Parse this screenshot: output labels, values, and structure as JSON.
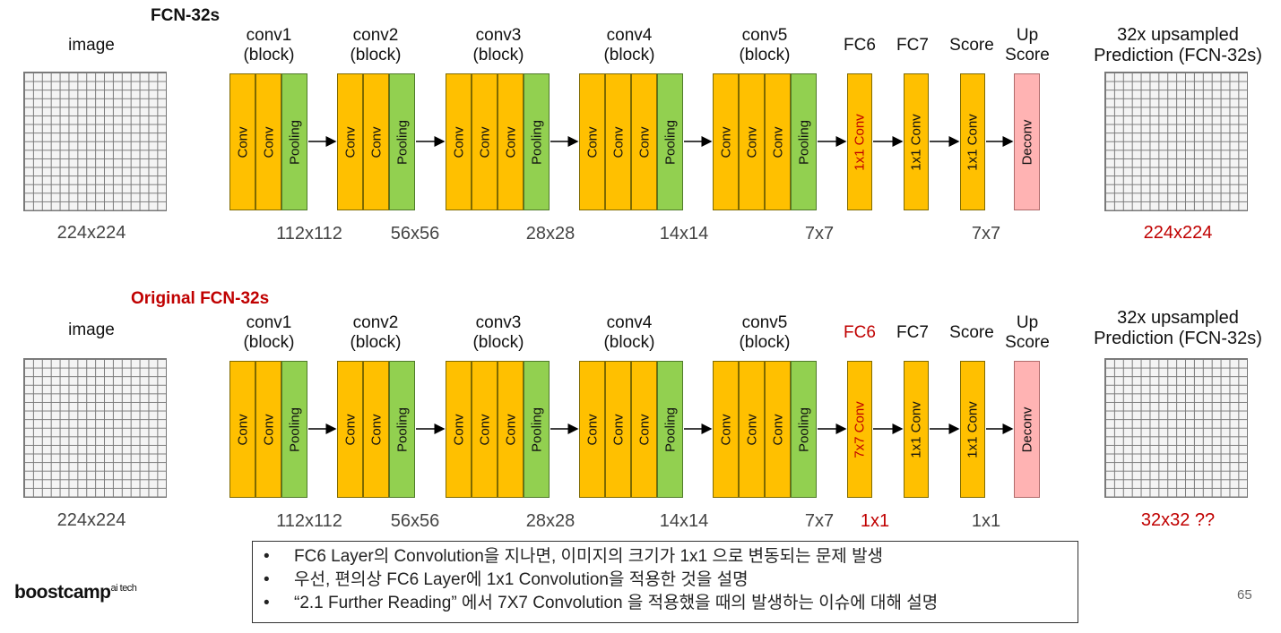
{
  "colors": {
    "conv": "#ffc000",
    "pooling": "#92d050",
    "deconv": "#ffb3b3",
    "red": "#c00000",
    "gray": "#444444"
  },
  "rows": [
    {
      "title": "FCN-32s",
      "input_label": "image",
      "input_size": "224x224",
      "blocks": [
        {
          "label": "conv1\n(block)",
          "layers": [
            "Conv",
            "Conv",
            "Pooling"
          ]
        },
        {
          "label": "conv2\n(block)",
          "layers": [
            "Conv",
            "Conv",
            "Pooling"
          ]
        },
        {
          "label": "conv3\n(block)",
          "layers": [
            "Conv",
            "Conv",
            "Conv",
            "Pooling"
          ]
        },
        {
          "label": "conv4\n(block)",
          "layers": [
            "Conv",
            "Conv",
            "Conv",
            "Pooling"
          ]
        },
        {
          "label": "conv5\n(block)",
          "layers": [
            "Conv",
            "Conv",
            "Conv",
            "Pooling"
          ]
        },
        {
          "label": "FC6",
          "layers": [
            "1x1 Conv"
          ]
        },
        {
          "label": "FC7",
          "layers": [
            "1x1 Conv"
          ]
        },
        {
          "label": "Score",
          "layers": [
            "1x1 Conv"
          ]
        },
        {
          "label": "Up\nScore",
          "layers": [
            "Deconv"
          ]
        }
      ],
      "sizes": [
        "112x112",
        "56x56",
        "28x28",
        "14x14",
        "7x7",
        "7x7"
      ],
      "output_label": "32x upsampled\nPrediction (FCN-32s)",
      "output_size": "224x224"
    },
    {
      "title": "Original FCN-32s",
      "input_label": "image",
      "input_size": "224x224",
      "blocks": [
        {
          "label": "conv1\n(block)",
          "layers": [
            "Conv",
            "Conv",
            "Pooling"
          ]
        },
        {
          "label": "conv2\n(block)",
          "layers": [
            "Conv",
            "Conv",
            "Pooling"
          ]
        },
        {
          "label": "conv3\n(block)",
          "layers": [
            "Conv",
            "Conv",
            "Conv",
            "Pooling"
          ]
        },
        {
          "label": "conv4\n(block)",
          "layers": [
            "Conv",
            "Conv",
            "Conv",
            "Pooling"
          ]
        },
        {
          "label": "conv5\n(block)",
          "layers": [
            "Conv",
            "Conv",
            "Conv",
            "Pooling"
          ]
        },
        {
          "label": "FC6",
          "layers": [
            "7x7 Conv"
          ]
        },
        {
          "label": "FC7",
          "layers": [
            "1x1 Conv"
          ]
        },
        {
          "label": "Score",
          "layers": [
            "1x1 Conv"
          ]
        },
        {
          "label": "Up\nScore",
          "layers": [
            "Deconv"
          ]
        }
      ],
      "sizes": [
        "112x112",
        "56x56",
        "28x28",
        "14x14",
        "7x7",
        "1x1",
        "1x1"
      ],
      "output_label": "32x upsampled\nPrediction (FCN-32s)",
      "output_size": "32x32 ??"
    }
  ],
  "notes": [
    "FC6 Layer의 Convolution을 지나면, 이미지의 크기가 1x1 으로 변동되는 문제 발생",
    "우선, 편의상 FC6 Layer에 1x1 Convolution을 적용한 것을 설명",
    "“2.1 Further Reading” 에서 7X7 Convolution 을 적용했을 때의 발생하는 이슈에 대해 설명"
  ],
  "logo": {
    "text": "boostcamp",
    "sup": "ai tech"
  },
  "page_number": "65"
}
